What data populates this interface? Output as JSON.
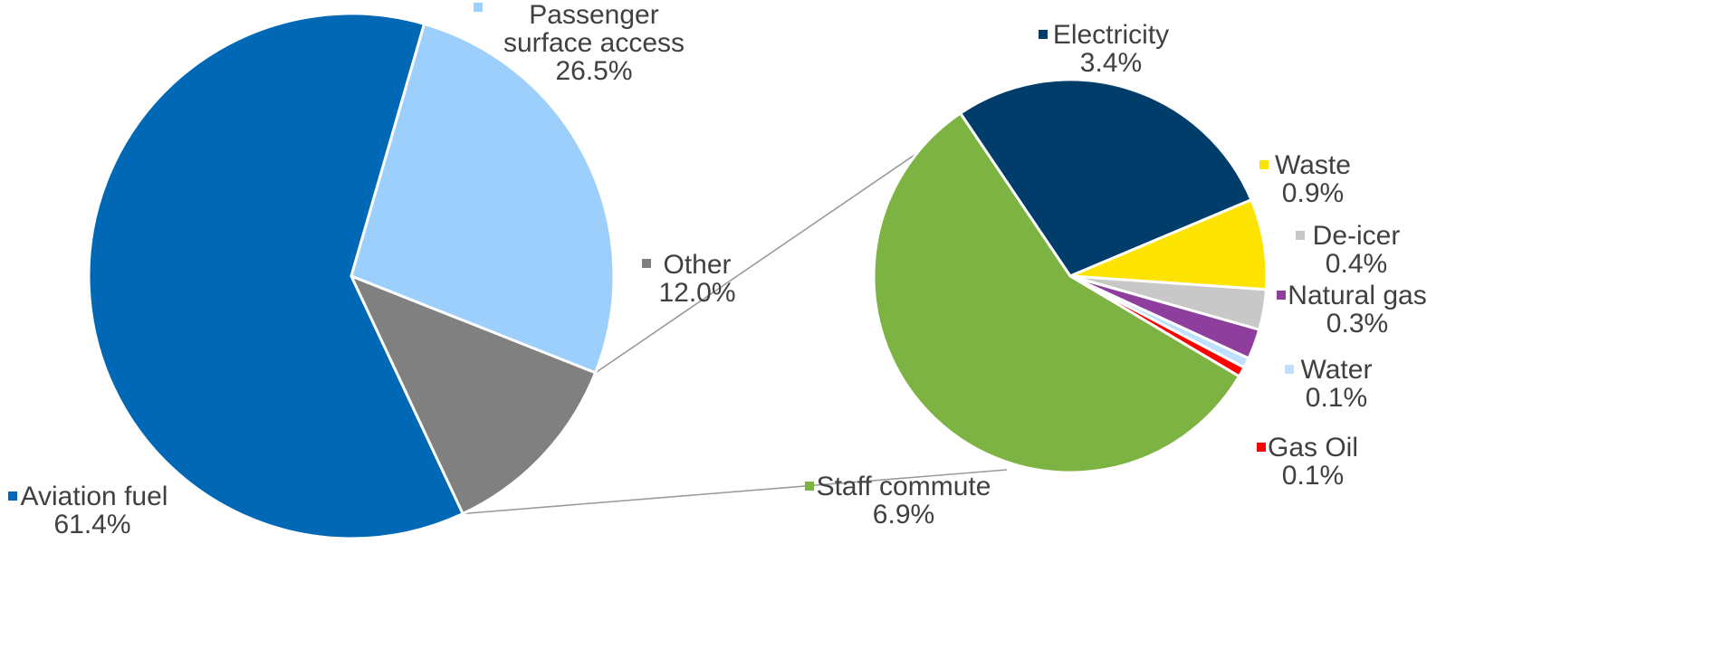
{
  "chart_data": [
    {
      "type": "pie",
      "slices": [
        {
          "label": "Aviation fuel",
          "value": 61.4,
          "display": "61.4%",
          "color": "#0068B5"
        },
        {
          "label": "Passenger surface access",
          "label_lines": [
            "Passenger",
            "surface access"
          ],
          "value": 26.5,
          "display": "26.5%",
          "color": "#9DCFFD"
        },
        {
          "label": "Other",
          "value": 12.0,
          "display": "12.0%",
          "color": "#808080"
        }
      ]
    },
    {
      "type": "pie",
      "breakdown_of": "Other",
      "slices": [
        {
          "label": "Electricity",
          "value": 3.4,
          "display": "3.4%",
          "color": "#003D6B"
        },
        {
          "label": "Waste",
          "value": 0.9,
          "display": "0.9%",
          "color": "#FCE300"
        },
        {
          "label": "De-icer",
          "value": 0.4,
          "display": "0.4%",
          "color": "#C8C8C8"
        },
        {
          "label": "Natural gas",
          "value": 0.3,
          "display": "0.3%",
          "color": "#8E3F9E"
        },
        {
          "label": "Water",
          "value": 0.1,
          "display": "0.1%",
          "color": "#BFDFFF"
        },
        {
          "label": "Gas Oil",
          "value": 0.1,
          "display": "0.1%",
          "color": "#FF0000"
        },
        {
          "label": "Staff commute",
          "value": 6.9,
          "display": "6.9%",
          "color": "#7CB342"
        }
      ]
    }
  ]
}
